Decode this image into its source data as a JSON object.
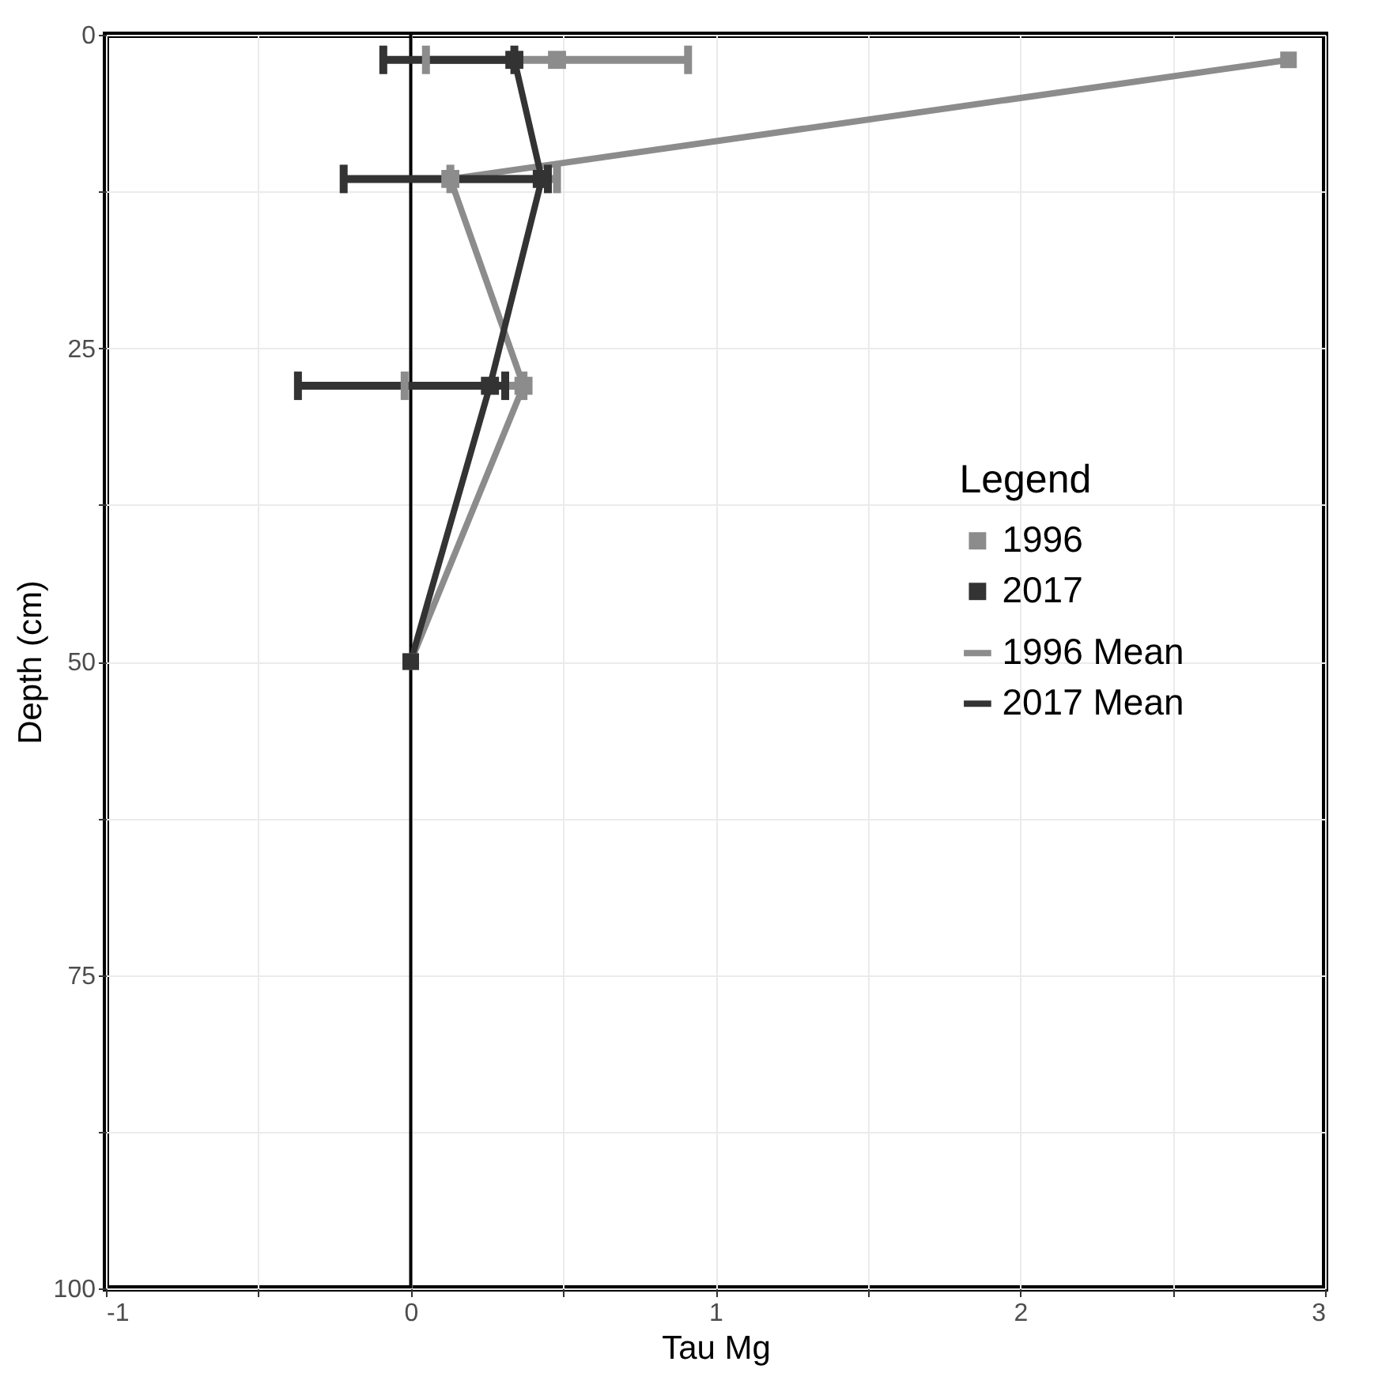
{
  "chart_data": {
    "type": "line",
    "xlabel": "Tau Mg",
    "ylabel": "Depth (cm)",
    "legend_title": "Legend",
    "xlim": [
      -1,
      3
    ],
    "xticks": [
      -1,
      {
        "value": -0.5,
        "label": null
      },
      0,
      {
        "value": 0.5,
        "label": null
      },
      1,
      {
        "value": 1.5,
        "label": null
      },
      2,
      {
        "value": 2.5,
        "label": null
      },
      3
    ],
    "ylim": [
      100,
      0
    ],
    "yticks": [
      0,
      {
        "value": 12.5,
        "label": null
      },
      25,
      {
        "value": 37.5,
        "label": null
      },
      50,
      {
        "value": 62.5,
        "label": null
      },
      75,
      {
        "value": 87.5,
        "label": null
      },
      100
    ],
    "grid": true,
    "legend": "right",
    "marker": "square",
    "ref_lines": [
      {
        "axis": "x",
        "value": 0,
        "color": "#000000"
      }
    ],
    "series": [
      {
        "name": "1996",
        "color": "#8c8c8c",
        "x": [
          2.88,
          0.13,
          0.37,
          0
        ],
        "values": [
          2,
          11.5,
          28,
          50
        ]
      },
      {
        "name": "2017",
        "color": "#333333",
        "x": [
          0.34,
          0.43,
          0.26,
          0
        ],
        "values": [
          2,
          11.5,
          28,
          50
        ]
      },
      {
        "name": "1996 Mean",
        "type": "scatter",
        "color": "#8c8c8c",
        "x": [
          0.48,
          0.13,
          0.37
        ],
        "values": [
          2,
          11.5,
          28
        ],
        "xerrors": [
          [
            0.05,
            0.91
          ],
          [
            0.13,
            0.48
          ],
          [
            -0.02,
            0.37
          ]
        ]
      },
      {
        "name": "2017 Mean",
        "type": "scatter",
        "color": "#333333",
        "x": [
          0.34,
          0.43,
          0.26
        ],
        "values": [
          2,
          11.5,
          28
        ],
        "xerrors": [
          [
            -0.09,
            0.34
          ],
          [
            -0.22,
            0.45
          ],
          [
            -0.37,
            0.31
          ]
        ]
      }
    ]
  }
}
